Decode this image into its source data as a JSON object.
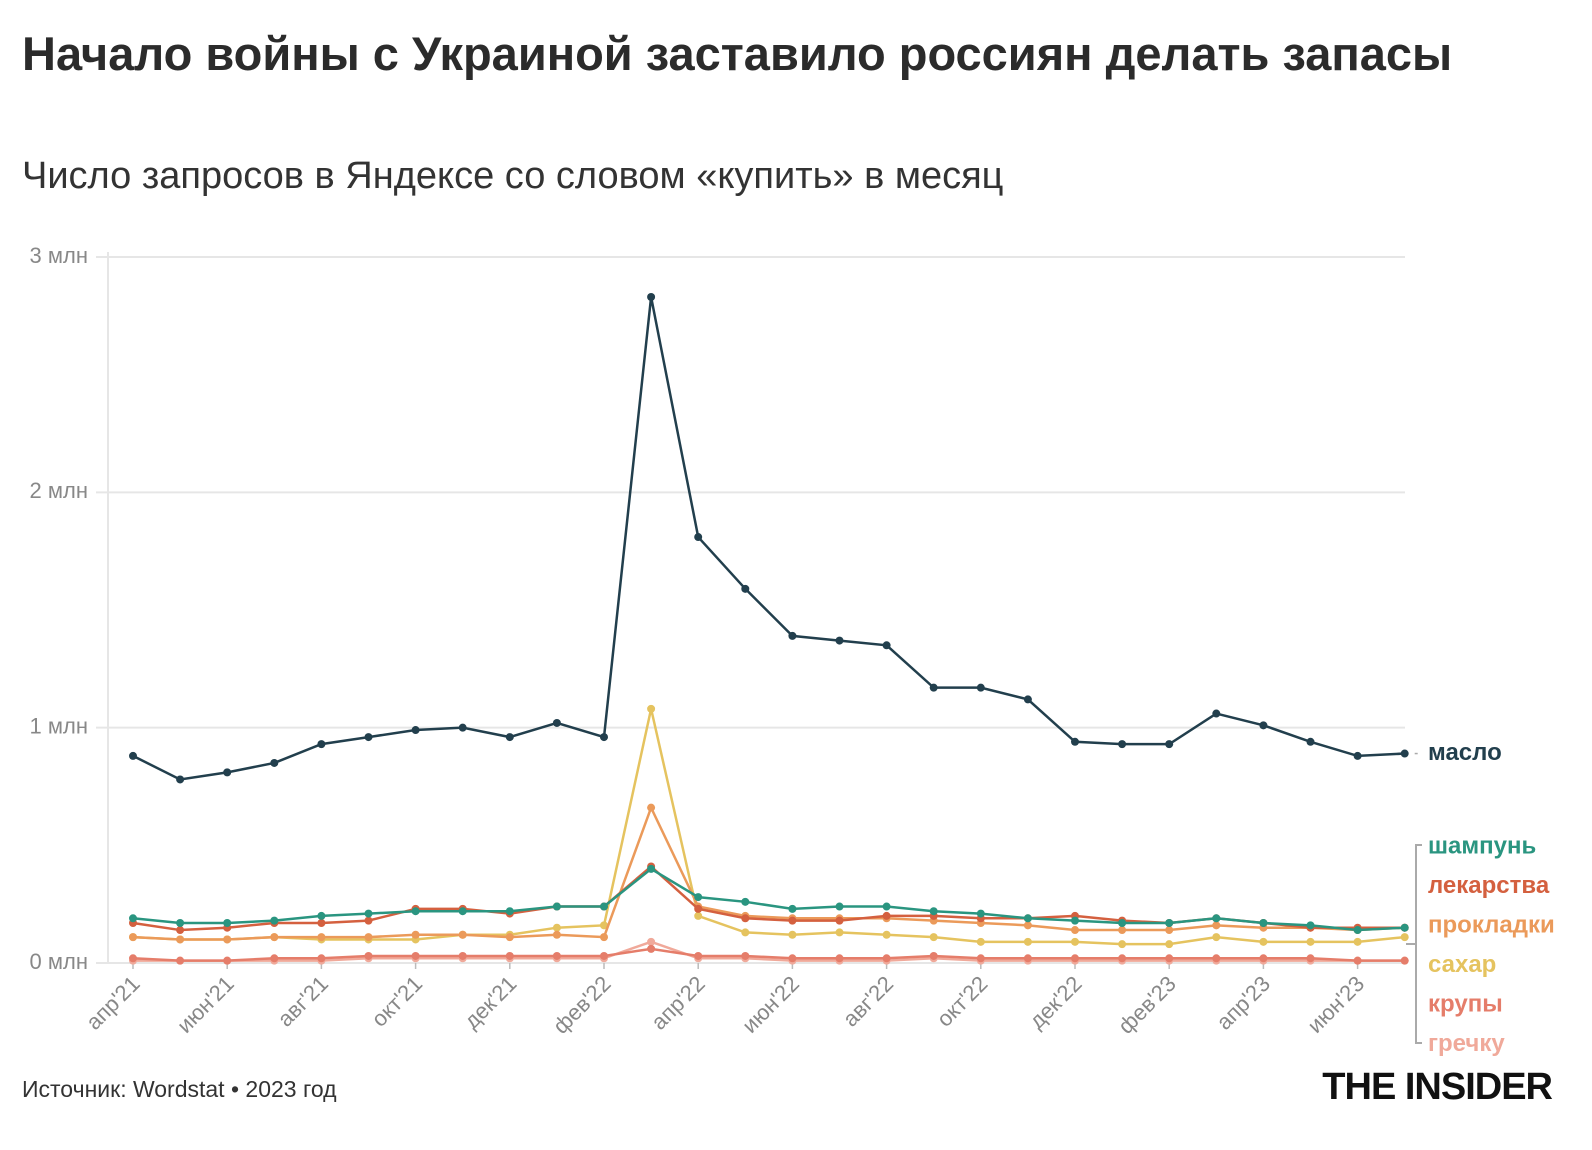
{
  "chart_data": {
    "type": "line",
    "title": "Начало войны с Украиной заставило россиян делать запасы",
    "subtitle": "Число запросов в Яндексе со словом «купить» в месяц",
    "source": "Источник: Wordstat • 2023 год",
    "logo": "THE INSIDER",
    "categories": [
      "апр'21",
      null,
      "июн'21",
      null,
      "авг'21",
      null,
      "окт'21",
      null,
      "дек'21",
      null,
      "фев'22",
      null,
      "апр'22",
      null,
      "июн'22",
      null,
      "авг'22",
      null,
      "окт'22",
      null,
      "дек'22",
      null,
      "фев'23",
      null,
      "апр'23",
      null,
      "июн'23",
      null
    ],
    "ylim": [
      0,
      3
    ],
    "yticks": [
      {
        "value": 0,
        "label": "0 млн"
      },
      {
        "value": 1,
        "label": "1 млн"
      },
      {
        "value": 2,
        "label": "2 млн"
      },
      {
        "value": 3,
        "label": "3 млн"
      }
    ],
    "grid": true,
    "series": [
      {
        "name": "масло",
        "color": "#223f4d",
        "values": [
          0.88,
          0.78,
          0.81,
          0.85,
          0.93,
          0.96,
          0.99,
          1.0,
          0.96,
          1.02,
          0.96,
          2.83,
          1.81,
          1.59,
          1.39,
          1.37,
          1.35,
          1.17,
          1.17,
          1.12,
          0.94,
          0.93,
          0.93,
          1.06,
          1.01,
          0.94,
          0.88,
          0.89
        ]
      },
      {
        "name": "шампунь",
        "color": "#2a9580",
        "values": [
          0.19,
          0.17,
          0.17,
          0.18,
          0.2,
          0.21,
          0.22,
          0.22,
          0.22,
          0.24,
          0.24,
          0.4,
          0.28,
          0.26,
          0.23,
          0.24,
          0.24,
          0.22,
          0.21,
          0.19,
          0.18,
          0.17,
          0.17,
          0.19,
          0.17,
          0.16,
          0.14,
          0.15
        ]
      },
      {
        "name": "лекарства",
        "color": "#d4603f",
        "values": [
          0.17,
          0.14,
          0.15,
          0.17,
          0.17,
          0.18,
          0.23,
          0.23,
          0.21,
          0.24,
          0.24,
          0.41,
          0.23,
          0.19,
          0.18,
          0.18,
          0.2,
          0.2,
          0.19,
          0.19,
          0.2,
          0.18,
          0.17,
          0.19,
          0.17,
          0.15,
          0.15,
          0.15
        ]
      },
      {
        "name": "прокладки",
        "color": "#eb9a5a",
        "values": [
          0.11,
          0.1,
          0.1,
          0.11,
          0.11,
          0.11,
          0.12,
          0.12,
          0.11,
          0.12,
          0.11,
          0.66,
          0.24,
          0.2,
          0.19,
          0.19,
          0.19,
          0.18,
          0.17,
          0.16,
          0.14,
          0.14,
          0.14,
          0.16,
          0.15,
          0.15,
          0.14,
          0.15
        ]
      },
      {
        "name": "сахар",
        "color": "#e5c35f",
        "values": [
          0.11,
          0.1,
          0.1,
          0.11,
          0.1,
          0.1,
          0.1,
          0.12,
          0.12,
          0.15,
          0.16,
          1.08,
          0.2,
          0.13,
          0.12,
          0.13,
          0.12,
          0.11,
          0.09,
          0.09,
          0.09,
          0.08,
          0.08,
          0.11,
          0.09,
          0.09,
          0.09,
          0.11
        ]
      },
      {
        "name": "крупы",
        "color": "#e57d6a",
        "values": [
          0.02,
          0.01,
          0.01,
          0.02,
          0.02,
          0.03,
          0.03,
          0.03,
          0.03,
          0.03,
          0.03,
          0.06,
          0.03,
          0.03,
          0.02,
          0.02,
          0.02,
          0.03,
          0.02,
          0.02,
          0.02,
          0.02,
          0.02,
          0.02,
          0.02,
          0.02,
          0.01,
          0.01
        ]
      },
      {
        "name": "гречку",
        "color": "#f0a99a",
        "values": [
          0.01,
          0.01,
          0.01,
          0.01,
          0.01,
          0.02,
          0.02,
          0.02,
          0.02,
          0.02,
          0.02,
          0.09,
          0.02,
          0.02,
          0.01,
          0.01,
          0.01,
          0.02,
          0.01,
          0.01,
          0.01,
          0.01,
          0.01,
          0.01,
          0.01,
          0.01,
          0.01,
          0.01
        ]
      }
    ]
  }
}
